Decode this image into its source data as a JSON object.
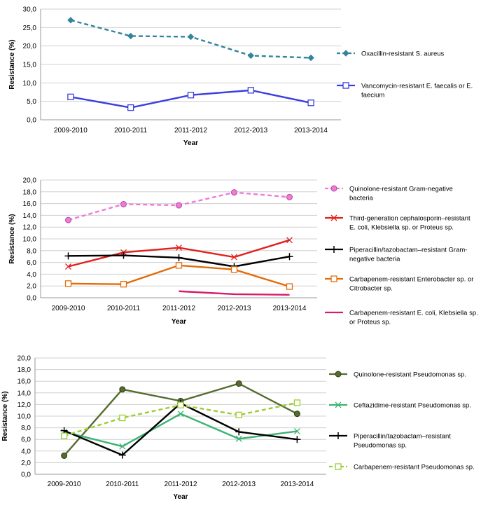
{
  "chart_data": [
    {
      "type": "line",
      "xlabel": "Year",
      "ylabel": "Resistance (%)",
      "categories": [
        "2009-2010",
        "2010-2011",
        "2011-2012",
        "2012-2013",
        "2013-2014"
      ],
      "ylim": [
        0,
        30
      ],
      "yticks": [
        "0,0",
        "5,0",
        "10,0",
        "15,0",
        "20,0",
        "25,0",
        "30,0"
      ],
      "grid": true,
      "legend": "right",
      "series": [
        {
          "name": "Oxacillin-resistant S. aureus",
          "legend_lines": [
            "Oxacillin-resistant S. aureus"
          ],
          "color": "#31859c",
          "dash": true,
          "marker": "diamond",
          "values": [
            27.0,
            22.7,
            22.5,
            17.4,
            16.8
          ]
        },
        {
          "name": "Vancomycin-resistant E. faecalis or E. faecium",
          "legend_lines": [
            "Vancomycin-resistant E. faecalis or E.",
            "faecium"
          ],
          "color": "#3a3de0",
          "dash": false,
          "marker": "square",
          "values": [
            6.2,
            3.3,
            6.7,
            8.0,
            4.6
          ]
        }
      ]
    },
    {
      "type": "line",
      "xlabel": "Year",
      "ylabel": "Resistance (%)",
      "categories": [
        "2009-2010",
        "2010-2011",
        "2011-2012",
        "2012-2013",
        "2013-2014"
      ],
      "ylim": [
        0,
        20
      ],
      "yticks": [
        "0,0",
        "2,0",
        "4,0",
        "6,0",
        "8,0",
        "10,0",
        "12,0",
        "14,0",
        "16,0",
        "18,0",
        "20,0"
      ],
      "grid": true,
      "legend": "right",
      "series": [
        {
          "name": "Quinolone-resistant Gram-negative bacteria",
          "legend_lines": [
            "Quinolone-resistant Gram-negative",
            "bacteria"
          ],
          "color": "#f07ad8",
          "dash": true,
          "marker": "circle",
          "values": [
            13.2,
            15.9,
            15.7,
            17.9,
            17.1
          ]
        },
        {
          "name": "Third-generation cephalosporin–resistant E. coli, Klebsiella sp. or Proteus sp.",
          "legend_lines": [
            "Third-generation cephalosporin–resistant",
            "E. coli, Klebsiella sp. or Proteus sp."
          ],
          "color": "#e0201c",
          "dash": false,
          "marker": "x",
          "values": [
            5.3,
            7.7,
            8.5,
            6.9,
            9.8
          ]
        },
        {
          "name": "Piperacillin/tazobactam–resistant Gram-negative bacteria",
          "legend_lines": [
            "Piperacillin/tazobactam–resistant  Gram-",
            "negative bacteria"
          ],
          "color": "#000000",
          "dash": false,
          "marker": "plus",
          "values": [
            7.1,
            7.2,
            6.8,
            5.3,
            7.0
          ]
        },
        {
          "name": "Carbapenem-resistant Enterobacter sp. or Citrobacter sp.",
          "legend_lines": [
            "Carbapenem-resistant Enterobacter sp. or",
            "Citrobacter sp."
          ],
          "color": "#e36c0a",
          "dash": false,
          "marker": "square",
          "values": [
            2.4,
            2.3,
            5.5,
            4.8,
            1.9
          ]
        },
        {
          "name": "Carbapenem-resistant E. coli, Klebsiella sp. or Proteus sp.",
          "legend_lines": [
            "Carbapenem-resistant E. coli, Klebsiella sp.",
            "or Proteus sp."
          ],
          "color": "#d81b6a",
          "dash": false,
          "marker": "none",
          "values": [
            null,
            null,
            1.1,
            0.6,
            0.5
          ]
        }
      ]
    },
    {
      "type": "line",
      "xlabel": "Year",
      "ylabel": "Resistance (%)",
      "categories": [
        "2009-2010",
        "2010-2011",
        "2011-2012",
        "2012-2013",
        "2013-2014"
      ],
      "ylim": [
        0,
        20
      ],
      "yticks": [
        "0,0",
        "2,0",
        "4,0",
        "6,0",
        "8,0",
        "10,0",
        "12,0",
        "14,0",
        "16,0",
        "18,0",
        "20,0"
      ],
      "grid": true,
      "legend": "right",
      "series": [
        {
          "name": "Quinolone-resistant Pseudomonas sp.",
          "legend_lines": [
            "Quinolone-resistant Pseudomonas sp."
          ],
          "color": "#556b2f",
          "dash": false,
          "marker": "circle",
          "values": [
            3.2,
            14.6,
            12.6,
            15.6,
            10.4
          ]
        },
        {
          "name": "Ceftazidime-resistant Pseudomonas sp.",
          "legend_lines": [
            "Ceftazidime-resistant  Pseudomonas sp."
          ],
          "color": "#3cb371",
          "dash": false,
          "marker": "x",
          "values": [
            7.3,
            4.8,
            10.4,
            6.1,
            7.4
          ]
        },
        {
          "name": "Piperacillin/tazobactam–resistant Pseudomonas sp.",
          "legend_lines": [
            "Piperacillin/tazobactam–resistant",
            "Pseudomonas sp."
          ],
          "color": "#000000",
          "dash": false,
          "marker": "plus",
          "values": [
            7.5,
            3.3,
            12.2,
            7.3,
            6.0
          ]
        },
        {
          "name": "Carbapenem-resistant Pseudomonas sp.",
          "legend_lines": [
            "Carbapenem-resistant Pseudomonas sp."
          ],
          "color": "#9acd32",
          "dash": true,
          "marker": "square",
          "values": [
            6.6,
            9.7,
            11.9,
            10.2,
            12.3
          ]
        }
      ]
    }
  ]
}
